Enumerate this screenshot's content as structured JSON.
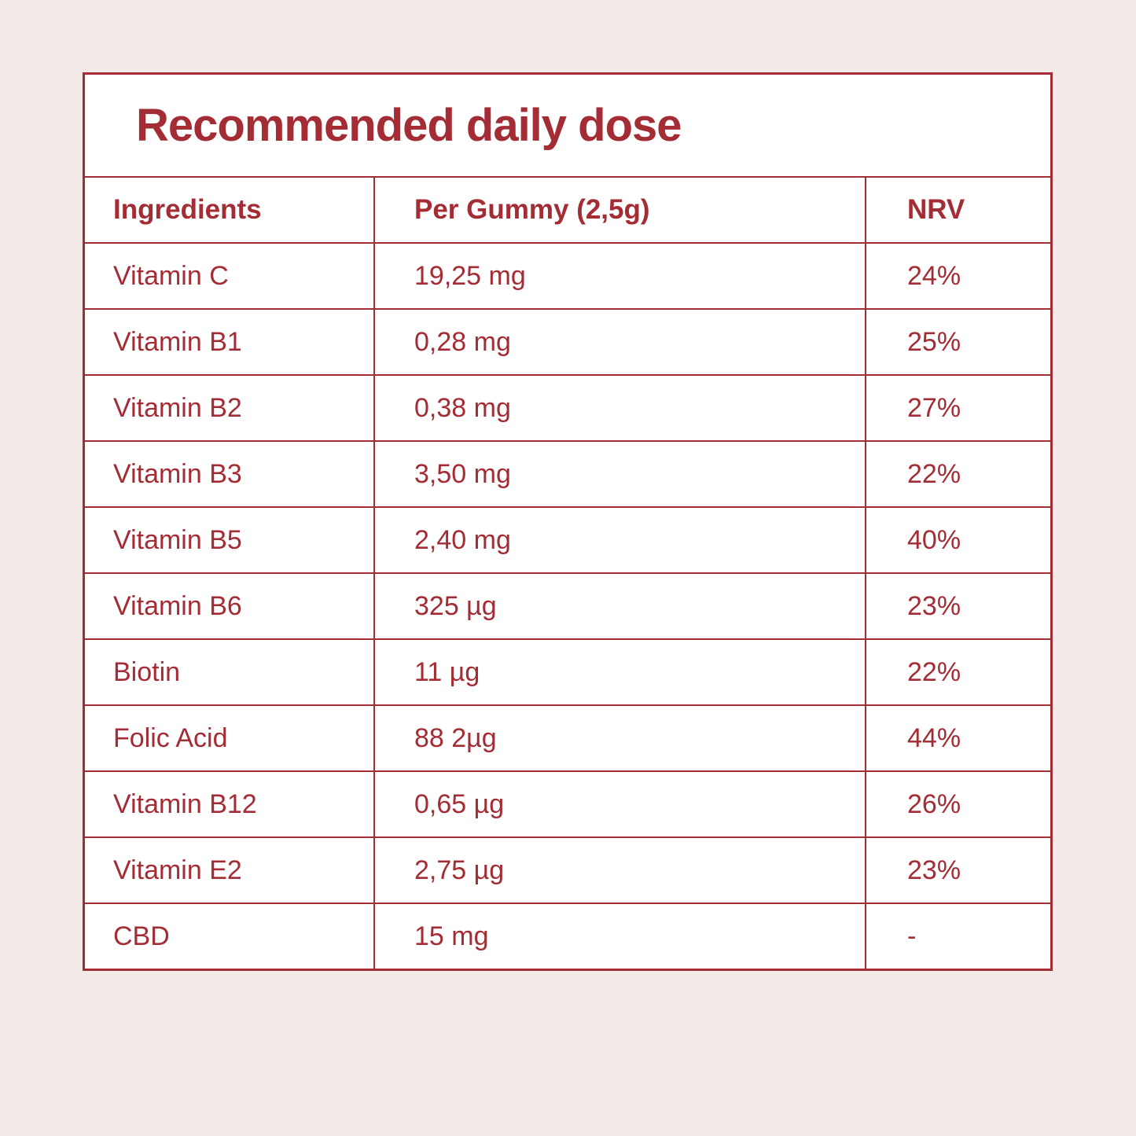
{
  "page": {
    "colors": {
      "accent": "#A32C35",
      "background": "#F3EAE8",
      "card_background": "#FFFFFF"
    }
  },
  "table": {
    "title": "Recommended daily dose",
    "columns": [
      "Ingredients",
      "Per Gummy (2,5g)",
      "NRV"
    ],
    "rows": [
      {
        "ingredient": "Vitamin C",
        "per_gummy": "19,25 mg",
        "nrv": "24%"
      },
      {
        "ingredient": "Vitamin B1",
        "per_gummy": "0,28 mg",
        "nrv": "25%"
      },
      {
        "ingredient": "Vitamin B2",
        "per_gummy": "0,38 mg",
        "nrv": "27%"
      },
      {
        "ingredient": "Vitamin B3",
        "per_gummy": "3,50 mg",
        "nrv": "22%"
      },
      {
        "ingredient": "Vitamin B5",
        "per_gummy": "2,40 mg",
        "nrv": "40%"
      },
      {
        "ingredient": "Vitamin B6",
        "per_gummy": "325 µg",
        "nrv": "23%"
      },
      {
        "ingredient": "Biotin",
        "per_gummy": "11 µg",
        "nrv": "22%"
      },
      {
        "ingredient": "Folic Acid",
        "per_gummy": "88 2µg",
        "nrv": "44%"
      },
      {
        "ingredient": "Vitamin B12",
        "per_gummy": "0,65 µg",
        "nrv": "26%"
      },
      {
        "ingredient": "Vitamin E2",
        "per_gummy": "2,75 µg",
        "nrv": "23%"
      },
      {
        "ingredient": "CBD",
        "per_gummy": "15 mg",
        "nrv": "-"
      }
    ]
  }
}
